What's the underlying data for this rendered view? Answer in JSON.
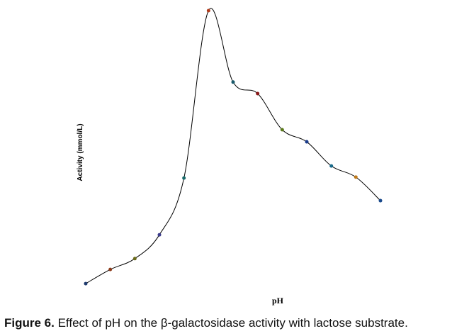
{
  "chart_data": {
    "type": "line",
    "xlabel": "pH",
    "ylabel": "Activity (mmol/L)",
    "categories": [
      null,
      null,
      null,
      null,
      null,
      null,
      null,
      null,
      null,
      null,
      null,
      null,
      null
    ],
    "values": [
      4.8,
      9.6,
      13.3,
      21.4,
      40.7,
      97.6,
      73.3,
      69.4,
      57.1,
      53.0,
      44.8,
      41.0,
      33.0
    ],
    "ylim": [
      0,
      100
    ],
    "color": "#000000",
    "marker_colors": [
      "#1f3b6e",
      "#8b3a1a",
      "#6b6b1a",
      "#3b3b8b",
      "#1a6b6b",
      "#b03a1a",
      "#1a5a6b",
      "#8b1a1a",
      "#5a7a1a",
      "#1a3b8b",
      "#1a6b8b",
      "#c07a1a",
      "#1a4a8b"
    ]
  },
  "caption": {
    "label": "Figure 6.",
    "text": "Effect of pH on the β-galactosidase activity with lactose substrate."
  }
}
